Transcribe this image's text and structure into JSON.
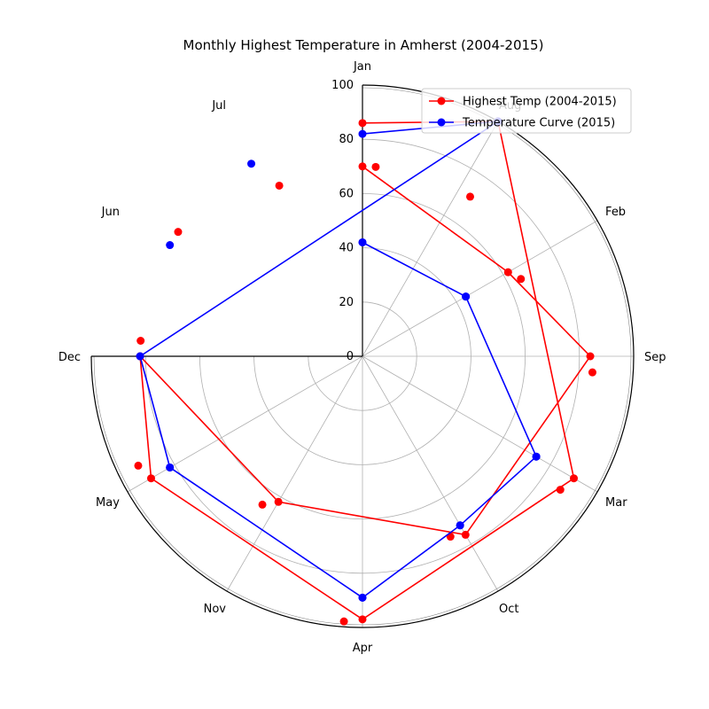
{
  "chart_data": {
    "type": "line",
    "subtype": "polar",
    "title": "Monthly Highest Temperature in Amherst (2004-2015)",
    "angular_tick_labels": [
      "Jan",
      "Aug",
      "Feb",
      "Sep",
      "Mar",
      "Oct",
      "Apr",
      "Nov",
      "May",
      "Dec",
      "Jun",
      "Jul"
    ],
    "radial_ticks": [
      0,
      20,
      40,
      60,
      80,
      100
    ],
    "rlim": [
      0,
      100
    ],
    "grid": true,
    "legend_position": "top-right",
    "series": [
      {
        "name": "Highest Temp (2004-2015)",
        "color": "#ff0000",
        "points": [
          {
            "label": "Jan",
            "value": 70
          },
          {
            "label": "Feb",
            "value": 65
          },
          {
            "label": "Mar",
            "value": 88
          },
          {
            "label": "Apr",
            "value": 98
          },
          {
            "label": "May",
            "value": 92
          },
          {
            "label": "Jun",
            "value": 82
          },
          {
            "label": "Jul",
            "value": 70
          },
          {
            "label": "Aug",
            "value": 71
          },
          {
            "label": "Sep",
            "value": 85
          },
          {
            "label": "Oct",
            "value": 74
          },
          {
            "label": "Nov",
            "value": 66
          },
          {
            "label": "Dec",
            "value": 82
          }
        ],
        "line_points": [
          {
            "label": "Jan",
            "value": 70
          },
          {
            "label": "Feb",
            "value": 62
          },
          {
            "label": "Sep",
            "value": 84
          },
          {
            "label": "Oct",
            "value": 76
          },
          {
            "label": "Nov",
            "value": 62
          },
          {
            "label": "Dec",
            "value": 82
          },
          {
            "label": "May",
            "value": 90
          },
          {
            "label": "Apr",
            "value": 97
          },
          {
            "label": "Mar",
            "value": 90
          },
          {
            "label": "Aug",
            "value": 100
          },
          {
            "label": "Jan",
            "value": 86
          }
        ]
      },
      {
        "name": "Temperature Curve (2015)",
        "color": "#0000ff",
        "points": [
          {
            "label": "Jan",
            "value": 42
          },
          {
            "label": "Feb",
            "value": 44
          },
          {
            "label": "Mar",
            "value": 74
          },
          {
            "label": "Apr",
            "value": 89
          },
          {
            "label": "May",
            "value": 82
          },
          {
            "label": "Jun",
            "value": 82
          },
          {
            "label": "Jul",
            "value": 82
          },
          {
            "label": "Aug",
            "value": 100
          },
          {
            "label": "Oct",
            "value": 72
          },
          {
            "label": "Dec",
            "value": 82
          }
        ],
        "line_points": [
          {
            "label": "Jan",
            "value": 42
          },
          {
            "label": "Feb",
            "value": 44
          },
          {
            "label": "Mar",
            "value": 74
          },
          {
            "label": "Oct",
            "value": 72
          },
          {
            "label": "Apr",
            "value": 89
          },
          {
            "label": "May",
            "value": 82
          },
          {
            "label": "Dec",
            "value": 82
          },
          {
            "label": "Aug",
            "value": 100
          },
          {
            "label": "Jan",
            "value": 82
          }
        ]
      }
    ]
  }
}
